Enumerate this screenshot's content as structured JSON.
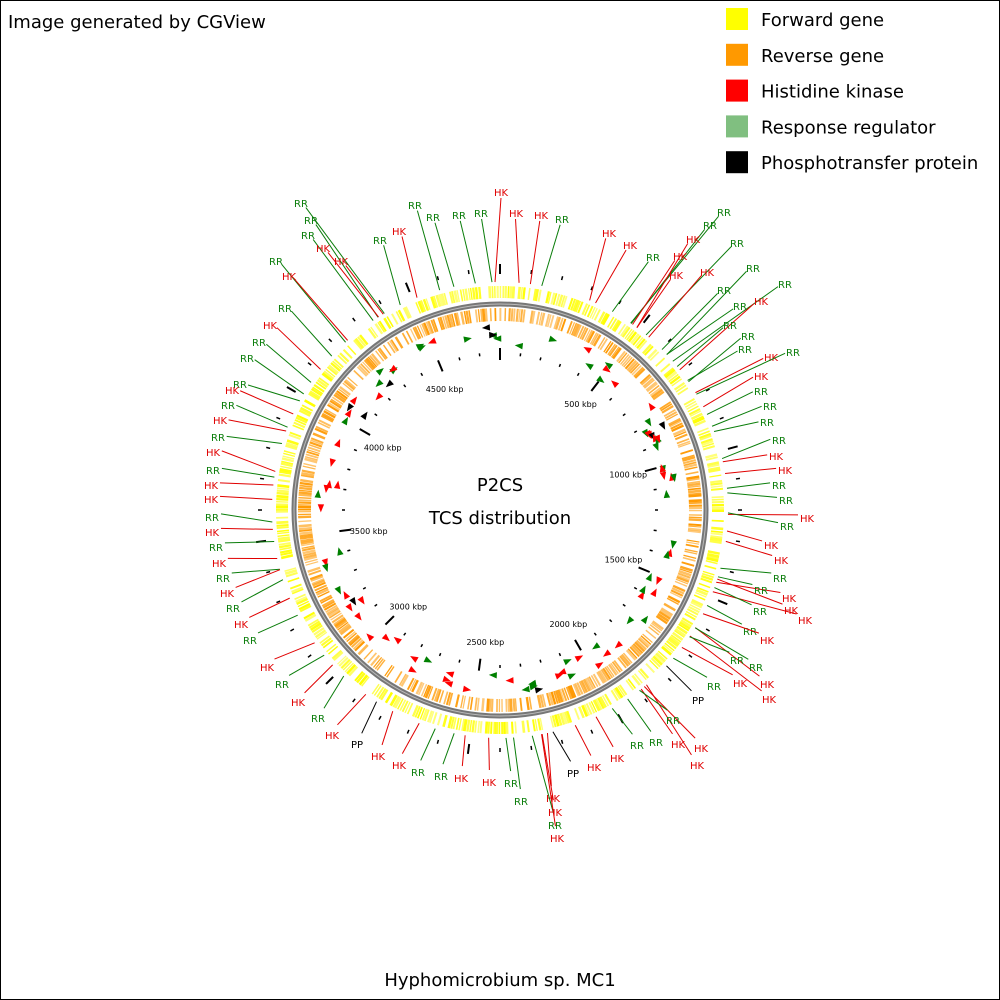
{
  "header": {
    "text": "Image generated by CGView"
  },
  "legend": [
    {
      "label": "Forward gene",
      "color": "#ffff00"
    },
    {
      "label": "Reverse gene",
      "color": "#ff9900"
    },
    {
      "label": "Histidine kinase",
      "color": "#ff0000"
    },
    {
      "label": "Response regulator",
      "color": "#80bf80"
    },
    {
      "label": "Phosphotransfer protein",
      "color": "#000000"
    }
  ],
  "center": {
    "title": "P2CS",
    "subtitle": "TCS distribution"
  },
  "tick_labels": [
    "500 kbp",
    "1000 kbp",
    "1500 kbp",
    "2000 kbp",
    "2500 kbp",
    "3000 kbp",
    "3500 kbp",
    "4000 kbp",
    "4500 kbp"
  ],
  "feature_colors": {
    "HK": "#e00000",
    "RR": "#0a7d0a",
    "PP": "#000000"
  },
  "feature_labels": [
    "RR",
    "RR",
    "HK",
    "RR",
    "RR",
    "HK",
    "HK",
    "HK",
    "RR",
    "RR",
    "RR",
    "RR",
    "RR",
    "HK",
    "HK",
    "RR",
    "HK",
    "RR",
    "HK",
    "RR",
    "RR",
    "RR",
    "HK",
    "RR",
    "HK",
    "RR",
    "HK",
    "RR",
    "HK",
    "HK",
    "RR",
    "HK",
    "RR",
    "HK",
    "RR",
    "HK",
    "RR",
    "HK",
    "RR",
    "HK",
    "RR",
    "HK",
    "RR",
    "HK",
    "PP",
    "HK",
    "HK",
    "RR",
    "RR",
    "HK",
    "HK",
    "RR",
    "RR",
    "HK",
    "HK",
    "RR",
    "HK",
    "PP",
    "HK",
    "HK",
    "RR",
    "RR",
    "HK",
    "HK",
    "HK",
    "RR",
    "PP",
    "RR",
    "HK",
    "HK",
    "HK",
    "RR",
    "RR",
    "RR",
    "RR",
    "HK",
    "RR",
    "HK",
    "HK",
    "RR",
    "HK",
    "HK",
    "RR",
    "HK",
    "RR",
    "RR",
    "RR",
    "HK",
    "RR",
    "RR",
    "RR",
    "HK",
    "RR",
    "HK",
    "RR",
    "RR",
    "RR",
    "RR",
    "HK",
    "HK",
    "RR",
    "RR",
    "HK",
    "RR",
    "HK",
    "HK",
    "RR",
    "HK",
    "RR",
    "HK",
    "HK",
    "RR",
    "HK",
    "RR"
  ],
  "footer": "Hyphomicrobium sp. MC1"
}
